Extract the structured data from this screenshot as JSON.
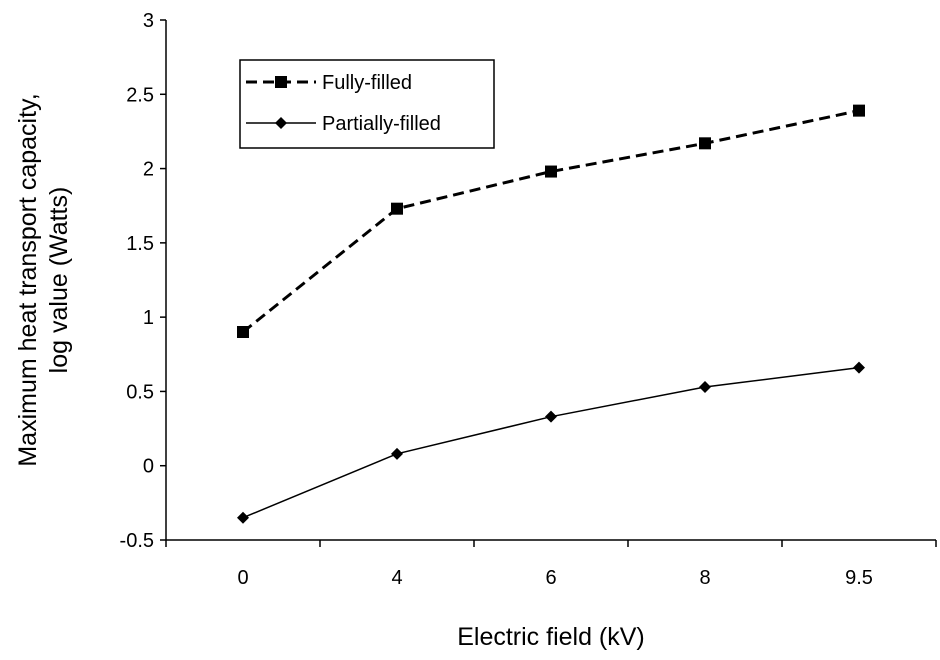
{
  "chart_data": {
    "type": "line",
    "title": "",
    "xlabel": "Electric field (kV)",
    "ylabel_lines": [
      "Maximum heat transport capacity,",
      "log value (Watts)"
    ],
    "categories": [
      "0",
      "4",
      "6",
      "8",
      "9.5"
    ],
    "ylim": [
      -0.5,
      3
    ],
    "yticks": [
      -0.5,
      0,
      0.5,
      1,
      1.5,
      2,
      2.5,
      3
    ],
    "ytick_labels": [
      "-0.5",
      "0",
      "0.5",
      "1",
      "1.5",
      "2",
      "2.5",
      "3"
    ],
    "grid": false,
    "legend_position": "top-left",
    "series": [
      {
        "name": "Fully-filled",
        "values": [
          0.9,
          1.73,
          1.98,
          2.17,
          2.39
        ],
        "marker": "square",
        "line_style": "dashed",
        "color": "#000000"
      },
      {
        "name": "Partially-filled",
        "values": [
          -0.35,
          0.08,
          0.33,
          0.53,
          0.66
        ],
        "marker": "diamond",
        "line_style": "solid",
        "color": "#000000"
      }
    ]
  }
}
